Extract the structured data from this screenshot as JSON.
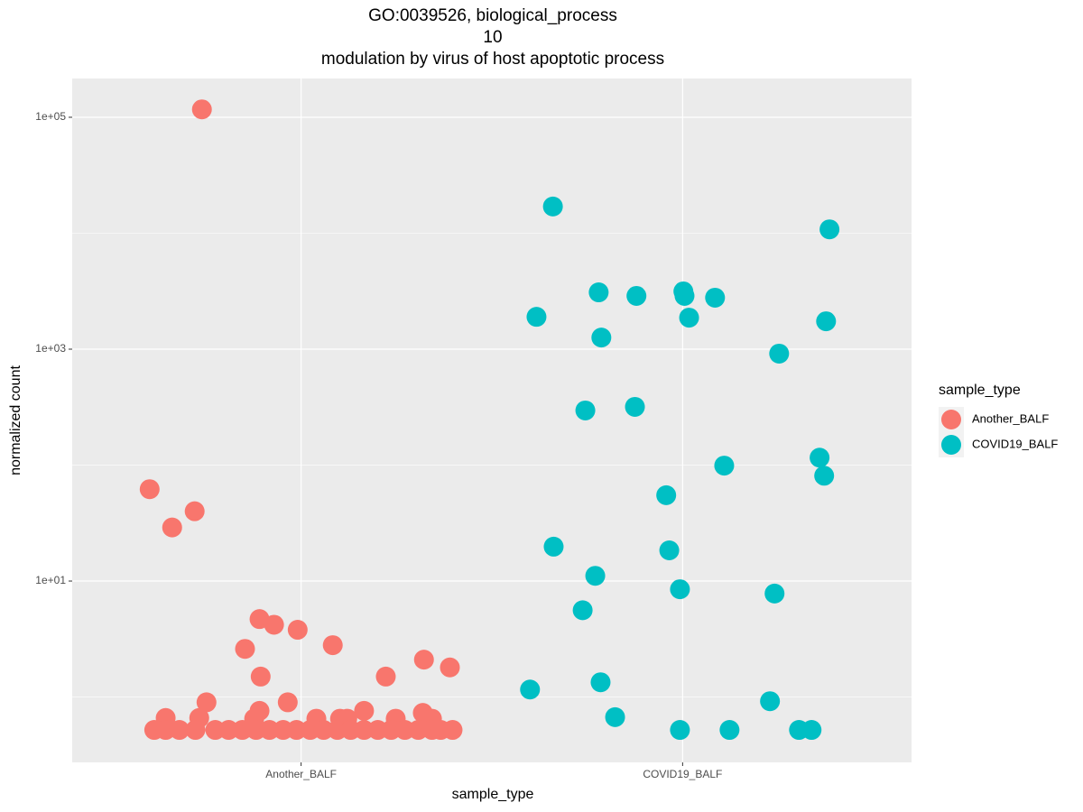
{
  "chart_data": {
    "type": "scatter",
    "title": [
      "GO:0039526, biological_process",
      "10",
      "modulation by virus of host apoptotic process"
    ],
    "x_label": "sample_type",
    "y_label": "normalized count",
    "legend_title": "sample_type",
    "legend_position": "right",
    "y_log": true,
    "grid": true,
    "background": "#ebebeb",
    "xlim": [
      0.4,
      2.6
    ],
    "xticks": [
      {
        "value": 1,
        "label": "Another_BALF"
      },
      {
        "value": 2,
        "label": "COVID19_BALF"
      }
    ],
    "ylim": [
      0.273,
      216000
    ],
    "yticks": [
      {
        "value": 100000,
        "label": "1e+05"
      },
      {
        "value": 1000,
        "label": "1e+03"
      },
      {
        "value": 10,
        "label": "1e+01"
      }
    ],
    "yminor": [
      10000,
      100,
      1
    ],
    "series": [
      {
        "name": "Another_BALF",
        "color": "#F8766D",
        "x": [
          0.74,
          0.603,
          0.662,
          0.721,
          0.891,
          0.929,
          0.991,
          0.853,
          1.083,
          0.894,
          1.222,
          1.322,
          1.39,
          0.752,
          0.965,
          0.891,
          1.165,
          1.319,
          0.645,
          0.733,
          0.877,
          1.04,
          1.102,
          1.121,
          1.248,
          1.343,
          0.615,
          0.645,
          0.681,
          0.723,
          0.775,
          0.81,
          0.846,
          0.882,
          0.917,
          0.953,
          0.988,
          1.024,
          1.059,
          1.095,
          1.13,
          1.165,
          1.201,
          1.236,
          1.272,
          1.307,
          1.343,
          1.366,
          1.397
        ],
        "values": [
          117000,
          62,
          29,
          40,
          4.7,
          4.2,
          3.8,
          2.6,
          2.8,
          1.5,
          1.5,
          2.1,
          1.8,
          0.9,
          0.9,
          0.76,
          0.76,
          0.73,
          0.66,
          0.66,
          0.65,
          0.65,
          0.65,
          0.65,
          0.65,
          0.65,
          0.52,
          0.52,
          0.52,
          0.52,
          0.52,
          0.52,
          0.52,
          0.52,
          0.52,
          0.52,
          0.52,
          0.52,
          0.52,
          0.52,
          0.52,
          0.52,
          0.52,
          0.52,
          0.52,
          0.52,
          0.52,
          0.52,
          0.52
        ]
      },
      {
        "name": "COVID19_BALF",
        "color": "#00BFC4",
        "x": [
          1.66,
          2.385,
          1.78,
          1.879,
          2.002,
          2.005,
          2.085,
          1.617,
          2.017,
          2.376,
          1.787,
          2.253,
          1.745,
          1.875,
          2.359,
          2.109,
          2.371,
          1.957,
          1.662,
          1.965,
          1.771,
          1.993,
          2.241,
          1.738,
          1.6,
          1.785,
          2.229,
          1.823,
          1.993,
          2.123,
          2.305,
          2.338
        ],
        "values": [
          17000,
          10800,
          3090,
          2880,
          3150,
          2880,
          2780,
          1900,
          1870,
          1740,
          1260,
          915,
          296,
          318,
          116,
          99,
          81,
          55,
          19.8,
          18.4,
          11.1,
          8.5,
          7.8,
          5.6,
          1.16,
          1.34,
          0.92,
          0.67,
          0.52,
          0.52,
          0.52,
          0.52
        ]
      }
    ]
  }
}
